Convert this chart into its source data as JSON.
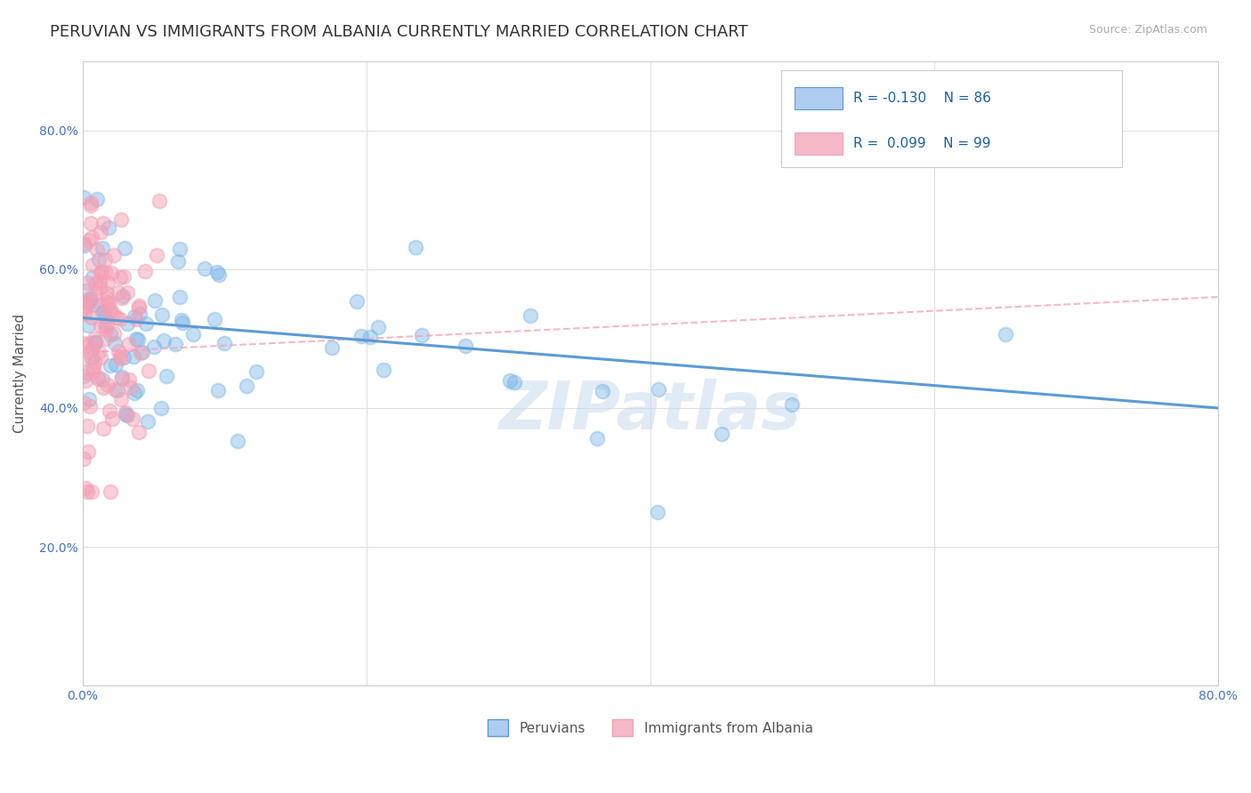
{
  "title": "PERUVIAN VS IMMIGRANTS FROM ALBANIA CURRENTLY MARRIED CORRELATION CHART",
  "source_text": "Source: ZipAtlas.com",
  "ylabel": "Currently Married",
  "xlim": [
    0.0,
    0.8
  ],
  "ylim": [
    0.0,
    0.9
  ],
  "watermark": "ZIPatlas",
  "legend_blue_label": "Peruvians",
  "legend_pink_label": "Immigrants from Albania",
  "R_blue": -0.13,
  "N_blue": 86,
  "R_pink": 0.099,
  "N_pink": 99,
  "blue_color": "#7eb6e8",
  "pink_color": "#f4a0b5",
  "trendline_blue_color": "#5b9bd5",
  "background_color": "#ffffff",
  "grid_color": "#e0e0e0",
  "title_fontsize": 13,
  "axis_label_fontsize": 11,
  "tick_fontsize": 10,
  "legend_box_color_blue": "#aecbf0",
  "legend_box_color_pink": "#f4b8c8",
  "blue_trend_start_y": 0.53,
  "blue_trend_end_y": 0.4,
  "pink_trend_start_y": 0.48,
  "pink_trend_end_y": 0.56
}
